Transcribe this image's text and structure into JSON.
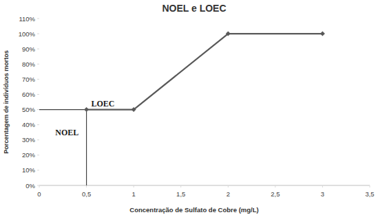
{
  "chart_data": {
    "type": "line",
    "title": "NOEL e LOEC",
    "x_label": "Concentração de Sulfato de Cobre (mg/L)",
    "y_label": "Porcentagem de indivíduos mortos",
    "x": [
      0.5,
      1,
      2,
      3
    ],
    "series": [
      {
        "color": "#595959",
        "marker": "diamond",
        "line_style": "solid",
        "values": [
          50,
          50,
          100,
          100
        ]
      }
    ],
    "xlim": [
      0,
      3.5
    ],
    "xticks": [
      0,
      {
        "value": 0.5,
        "label": "0,5"
      },
      1,
      {
        "value": 1.5,
        "label": "1,5"
      },
      2,
      {
        "value": 2.5,
        "label": "2,5"
      },
      3,
      {
        "value": 3.5,
        "label": "3,5"
      }
    ],
    "ylim": [
      0,
      110
    ],
    "yticks": [
      {
        "value": 0,
        "label": "0%"
      },
      {
        "value": 10,
        "label": "10%"
      },
      {
        "value": 20,
        "label": "20%"
      },
      {
        "value": 30,
        "label": "30%"
      },
      {
        "value": 40,
        "label": "40%"
      },
      {
        "value": 50,
        "label": "50%"
      },
      {
        "value": 60,
        "label": "60%"
      },
      {
        "value": 70,
        "label": "70%"
      },
      {
        "value": 80,
        "label": "80%"
      },
      {
        "value": 90,
        "label": "90%"
      },
      {
        "value": 100,
        "label": "100%"
      },
      {
        "value": 110,
        "label": "110%"
      }
    ],
    "annotations": [
      {
        "text": "LOEC",
        "x": 0.55,
        "y": 52
      },
      {
        "text": "NOEL",
        "x": 0.17,
        "y": 33
      }
    ],
    "grid": false
  }
}
